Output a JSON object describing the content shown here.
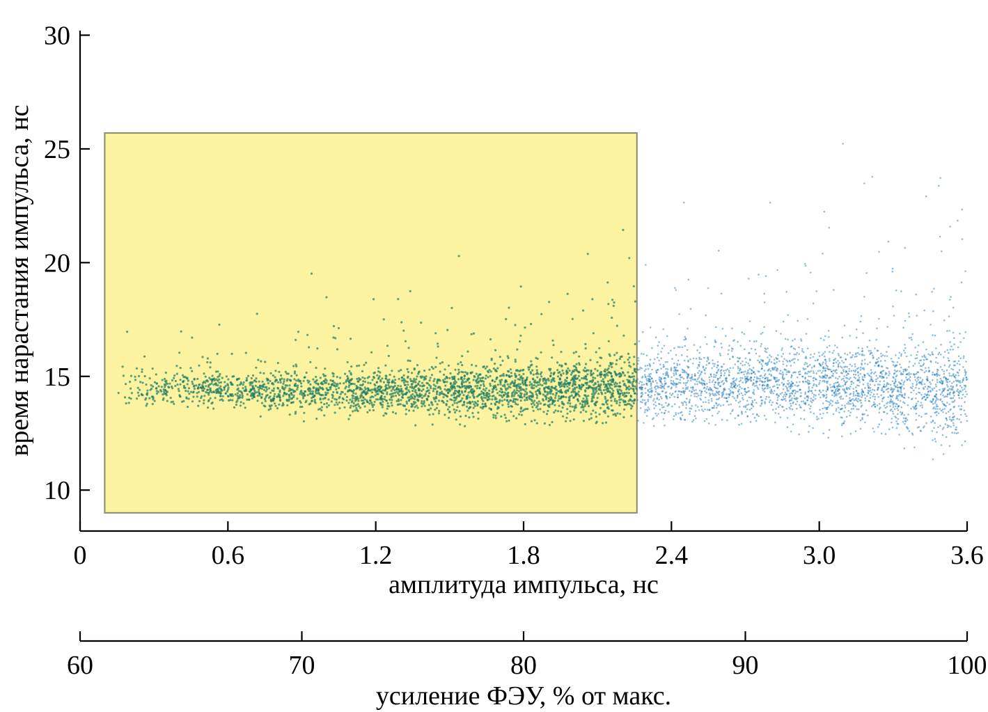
{
  "chart_data": {
    "type": "scatter",
    "x_axis": {
      "label": "амплитуда импульса, нс",
      "range": [
        0,
        3.6
      ],
      "ticks": [
        0,
        0.6,
        1.2,
        1.8,
        2.4,
        3.0,
        3.6
      ],
      "tick_labels": [
        "0",
        "0.6",
        "1.2",
        "1.8",
        "2.4",
        "3.0",
        "3.6"
      ]
    },
    "y_axis": {
      "label": "время нарастания импульса, нс",
      "range": [
        8.2,
        30.2
      ],
      "ticks": [
        10,
        15,
        20,
        25,
        30
      ],
      "tick_labels": [
        "10",
        "15",
        "20",
        "25",
        "30"
      ]
    },
    "secondary_x_axis": {
      "label": "усиление ФЭУ, % от макс.",
      "range": [
        60,
        100
      ],
      "ticks": [
        60,
        70,
        80,
        90,
        100
      ],
      "tick_labels": [
        "60",
        "70",
        "80",
        "90",
        "100"
      ]
    },
    "highlight_region": {
      "x": [
        0.1,
        2.26
      ],
      "y": [
        9.0,
        25.7
      ],
      "fill": "#fbf3a0",
      "marker_color": "#1f7a63"
    },
    "series": [
      {
        "marker_color": "#0a6cb4",
        "x_range": [
          0.14,
          3.6
        ],
        "core_y": [
          [
            0.15,
            14.5
          ],
          [
            0.6,
            14.4
          ],
          [
            1.2,
            14.3
          ],
          [
            1.8,
            14.4
          ],
          [
            2.4,
            14.6
          ],
          [
            3.0,
            14.7
          ],
          [
            3.6,
            14.3
          ]
        ],
        "spread_y": [
          [
            0.15,
            0.55
          ],
          [
            0.6,
            0.65
          ],
          [
            1.2,
            0.8
          ],
          [
            1.8,
            1.0
          ],
          [
            2.4,
            1.2
          ],
          [
            3.0,
            1.45
          ],
          [
            3.6,
            1.7
          ]
        ]
      }
    ],
    "grid": false,
    "legend": "none"
  }
}
